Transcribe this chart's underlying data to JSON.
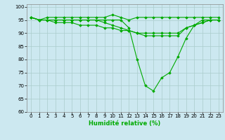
{
  "xlabel": "Humidité relative (%)",
  "background_color": "#cce8f0",
  "grid_color": "#aacccc",
  "line_color": "#00aa00",
  "xlim": [
    -0.5,
    23.5
  ],
  "ylim": [
    60,
    101
  ],
  "yticks": [
    60,
    65,
    70,
    75,
    80,
    85,
    90,
    95,
    100
  ],
  "xticks": [
    0,
    1,
    2,
    3,
    4,
    5,
    6,
    7,
    8,
    9,
    10,
    11,
    12,
    13,
    14,
    15,
    16,
    17,
    18,
    19,
    20,
    21,
    22,
    23
  ],
  "lines": [
    [
      96,
      95,
      96,
      96,
      96,
      96,
      96,
      96,
      96,
      96,
      97,
      96,
      95,
      96,
      96,
      96,
      96,
      96,
      96,
      96,
      96,
      96,
      96,
      96
    ],
    [
      96,
      95,
      95,
      95,
      95,
      95,
      95,
      95,
      95,
      95,
      95,
      95,
      92,
      80,
      70,
      68,
      73,
      75,
      81,
      88,
      93,
      95,
      95,
      95
    ],
    [
      96,
      95,
      95,
      95,
      95,
      95,
      95,
      95,
      95,
      94,
      93,
      92,
      91,
      90,
      90,
      90,
      90,
      90,
      90,
      92,
      93,
      94,
      95,
      95
    ],
    [
      96,
      95,
      95,
      94,
      94,
      94,
      93,
      93,
      93,
      92,
      92,
      91,
      91,
      90,
      89,
      89,
      89,
      89,
      89,
      92,
      93,
      94,
      95,
      95
    ]
  ],
  "marker": "D",
  "markersize": 1.8,
  "linewidth": 0.8,
  "xlabel_fontsize": 6.0,
  "tick_fontsize": 5.0
}
